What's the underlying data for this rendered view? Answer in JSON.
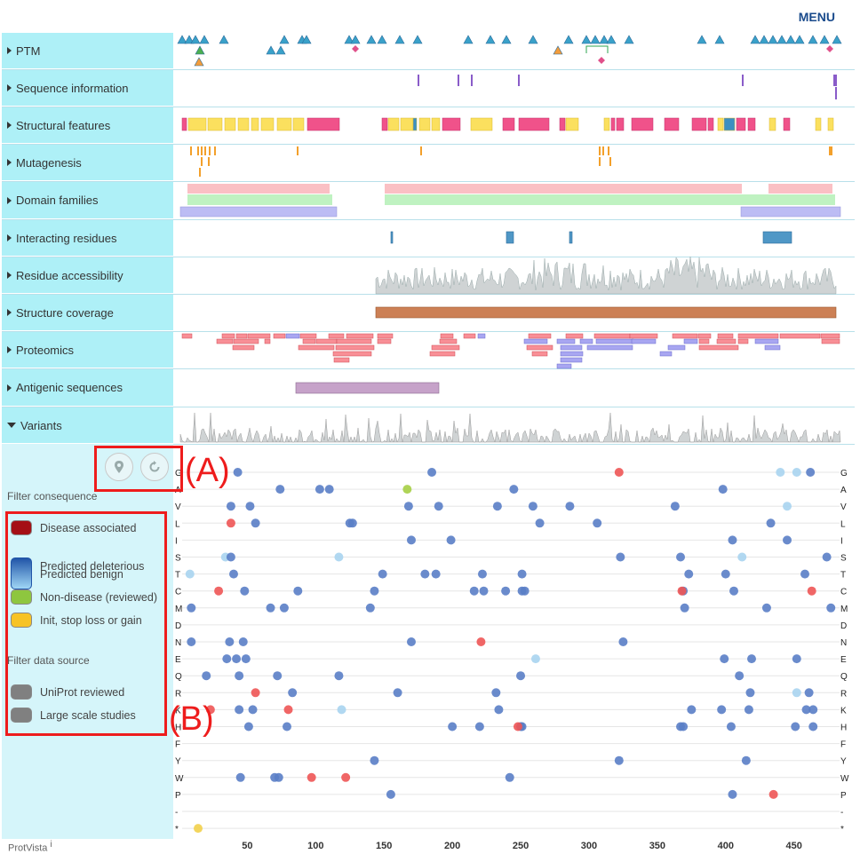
{
  "header": {
    "menu_label": "MENU"
  },
  "tracks": [
    {
      "label": "PTM",
      "expanded": false
    },
    {
      "label": "Sequence information",
      "expanded": false
    },
    {
      "label": "Structural features",
      "expanded": false
    },
    {
      "label": "Mutagenesis",
      "expanded": false
    },
    {
      "label": "Domain families",
      "expanded": false
    },
    {
      "label": "Interacting residues",
      "expanded": false
    },
    {
      "label": "Residue accessibility",
      "expanded": false
    },
    {
      "label": "Structure coverage",
      "expanded": false
    },
    {
      "label": "Proteomics",
      "expanded": false
    },
    {
      "label": "Antigenic sequences",
      "expanded": false
    },
    {
      "label": "Variants",
      "expanded": true
    }
  ],
  "filters": {
    "consequence_title": "Filter consequence",
    "consequence": [
      {
        "label": "Disease associated",
        "color": "#a50f15"
      },
      {
        "label": "Predicted deleterious",
        "color": "#2155a8"
      },
      {
        "label": "Predicted benign",
        "color": "#9fd6f5"
      },
      {
        "label": "Non-disease (reviewed)",
        "color": "#8ec63f"
      },
      {
        "label": "Init, stop loss or gain",
        "color": "#f7c325"
      }
    ],
    "source_title": "Filter data source",
    "source": [
      {
        "label": "UniProt reviewed",
        "color": "#808080"
      },
      {
        "label": "Large scale studies",
        "color": "#808080"
      }
    ]
  },
  "controls": {
    "filter_icon": "map-marker-icon",
    "reset_icon": "reset-icon"
  },
  "annotations": {
    "a": "(A)",
    "b": "(B)"
  },
  "footer": {
    "name": "ProtVista",
    "info_symbol": "i"
  },
  "colors": {
    "deleterious": "#5a7ec6",
    "benign": "#a9d4f0",
    "disease": "#ee5555",
    "nondisease": "#a6cf45",
    "stop": "#f2d04b",
    "ptm": "#3aa1c9",
    "struct_pink": "#f0528a",
    "struct_yellow": "#fbe05e",
    "domain_pink": "#fac0c4",
    "domain_green": "#bff2c1",
    "domain_purple": "#bcbcf4",
    "coverage": "#cc8055",
    "antigenic": "#c6a2c9"
  },
  "chart_data": {
    "type": "scatter",
    "x_ticks": [
      50,
      100,
      150,
      200,
      250,
      300,
      350,
      400,
      450
    ],
    "x_range": [
      1,
      484
    ],
    "amino_acids": [
      "G",
      "A",
      "V",
      "L",
      "I",
      "S",
      "T",
      "C",
      "M",
      "D",
      "N",
      "E",
      "Q",
      "R",
      "K",
      "H",
      "F",
      "Y",
      "W",
      "P",
      "-",
      "*"
    ],
    "variants": [
      {
        "aa": "G",
        "x": [
          43,
          185,
          440,
          452,
          462
        ],
        "cls": [
          "d",
          "d",
          "b",
          "b",
          "d"
        ]
      },
      {
        "aa": "G",
        "x": [
          322
        ],
        "cls": [
          "x"
        ]
      },
      {
        "aa": "A",
        "x": [
          74,
          103,
          110,
          245,
          398
        ],
        "cls": [
          "d",
          "d",
          "d",
          "d",
          "d"
        ]
      },
      {
        "aa": "A",
        "x": [
          167
        ],
        "cls": [
          "n"
        ]
      },
      {
        "aa": "V",
        "x": [
          38,
          52,
          168,
          190,
          233,
          259,
          286,
          363,
          445
        ],
        "cls": [
          "d",
          "d",
          "d",
          "d",
          "d",
          "d",
          "d",
          "d",
          "b"
        ]
      },
      {
        "aa": "L",
        "x": [
          38
        ],
        "cls": [
          "x"
        ]
      },
      {
        "aa": "L",
        "x": [
          56,
          125,
          127,
          264,
          306,
          433
        ],
        "cls": [
          "d",
          "d",
          "d",
          "d",
          "d",
          "d"
        ]
      },
      {
        "aa": "I",
        "x": [
          170,
          199,
          405,
          445
        ],
        "cls": [
          "d",
          "d",
          "d",
          "d"
        ]
      },
      {
        "aa": "S",
        "x": [
          34,
          38,
          117,
          323,
          367,
          412,
          474
        ],
        "cls": [
          "b",
          "d",
          "b",
          "d",
          "d",
          "b",
          "d"
        ]
      },
      {
        "aa": "T",
        "x": [
          8,
          40,
          149,
          180,
          188,
          222,
          251,
          373,
          400,
          458
        ],
        "cls": [
          "b",
          "d",
          "d",
          "d",
          "d",
          "d",
          "d",
          "d",
          "d",
          "d"
        ]
      },
      {
        "aa": "C",
        "x": [
          29,
          48,
          87,
          143,
          216,
          223,
          239,
          251,
          253,
          369,
          406
        ],
        "cls": [
          "x",
          "d",
          "d",
          "d",
          "d",
          "d",
          "d",
          "d",
          "d",
          "d",
          "d"
        ]
      },
      {
        "aa": "C",
        "x": [
          463,
          368
        ],
        "cls": [
          "x",
          "x"
        ]
      },
      {
        "aa": "M",
        "x": [
          9,
          67,
          77,
          140,
          370,
          430,
          477
        ],
        "cls": [
          "d",
          "d",
          "d",
          "d",
          "d",
          "d",
          "d"
        ]
      },
      {
        "aa": "N",
        "x": [
          9,
          37,
          47,
          170,
          325
        ],
        "cls": [
          "d",
          "d",
          "d",
          "d",
          "d"
        ]
      },
      {
        "aa": "N",
        "x": [
          221
        ],
        "cls": [
          "x"
        ]
      },
      {
        "aa": "E",
        "x": [
          35,
          42,
          49,
          261,
          399,
          419,
          452
        ],
        "cls": [
          "d",
          "d",
          "d",
          "b",
          "d",
          "d",
          "d"
        ]
      },
      {
        "aa": "Q",
        "x": [
          20,
          44,
          72,
          117,
          250,
          410
        ],
        "cls": [
          "d",
          "d",
          "d",
          "d",
          "d",
          "d"
        ]
      },
      {
        "aa": "R",
        "x": [
          56
        ],
        "cls": [
          "x"
        ]
      },
      {
        "aa": "R",
        "x": [
          83,
          160,
          232,
          418,
          452,
          461
        ],
        "cls": [
          "d",
          "d",
          "d",
          "d",
          "b",
          "d"
        ]
      },
      {
        "aa": "K",
        "x": [
          23
        ],
        "cls": [
          "x"
        ]
      },
      {
        "aa": "K",
        "x": [
          80
        ],
        "cls": [
          "x"
        ]
      },
      {
        "aa": "K",
        "x": [
          44,
          54,
          119,
          234,
          375,
          397,
          417,
          459,
          464
        ],
        "cls": [
          "d",
          "d",
          "b",
          "d",
          "d",
          "d",
          "d",
          "d",
          "d"
        ]
      },
      {
        "aa": "H",
        "x": [
          51,
          79,
          200,
          220,
          250,
          251,
          367,
          369,
          404,
          451,
          464
        ],
        "cls": [
          "d",
          "d",
          "d",
          "d",
          "d",
          "d",
          "d",
          "d",
          "d",
          "d",
          "d"
        ]
      },
      {
        "aa": "H",
        "x": [
          248
        ],
        "cls": [
          "x"
        ]
      },
      {
        "aa": "Y",
        "x": [
          143,
          322,
          415
        ],
        "cls": [
          "d",
          "d",
          "d"
        ]
      },
      {
        "aa": "W",
        "x": [
          45,
          70,
          73,
          242
        ],
        "cls": [
          "d",
          "d",
          "d",
          "d"
        ]
      },
      {
        "aa": "W",
        "x": [
          97,
          122
        ],
        "cls": [
          "x",
          "x"
        ]
      },
      {
        "aa": "P",
        "x": [
          155,
          405
        ],
        "cls": [
          "d",
          "d"
        ]
      },
      {
        "aa": "P",
        "x": [
          435
        ],
        "cls": [
          "x"
        ]
      },
      {
        "aa": "*",
        "x": [
          14
        ],
        "cls": [
          "s"
        ]
      }
    ]
  }
}
